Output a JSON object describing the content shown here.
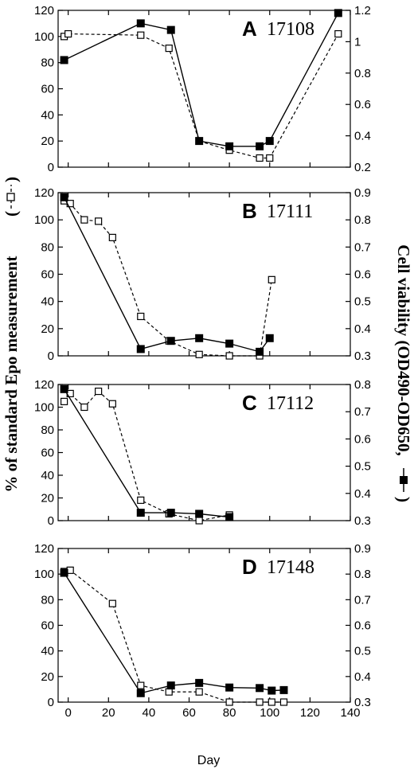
{
  "figure": {
    "left_axis_label": "% of standard Epo measurement",
    "right_axis_label": "Cell viability (OD490-OD650,",
    "x_axis_label": "Day"
  },
  "chart_data": [
    {
      "type": "line",
      "panel_letter": "A",
      "panel_id": "17108",
      "xlim": [
        -5,
        140
      ],
      "x_ticks": [
        0,
        20,
        40,
        60,
        80,
        100,
        120,
        140
      ],
      "ylim_left": [
        0,
        120
      ],
      "y_ticks_left": [
        "0",
        "20",
        "40",
        "60",
        "80",
        "100",
        "120"
      ],
      "ylim_right": [
        0.2,
        1.2
      ],
      "y_ticks_right": [
        "0.2",
        "0.4",
        "0.6",
        "0.8",
        "1",
        "1.2"
      ],
      "series": [
        {
          "axis": "left",
          "style": "dashed",
          "marker": "open-square",
          "points": [
            [
              -2,
              100
            ],
            [
              0,
              102
            ],
            [
              36,
              101
            ],
            [
              50,
              91
            ],
            [
              65,
              20
            ],
            [
              80,
              13
            ],
            [
              95,
              7
            ],
            [
              100,
              7
            ],
            [
              134,
              102
            ]
          ]
        },
        {
          "axis": "right",
          "style": "solid",
          "marker": "filled-square",
          "points": [
            [
              -2,
              0.883
            ],
            [
              36,
              1.117
            ],
            [
              51,
              1.075
            ],
            [
              65,
              0.367
            ],
            [
              80,
              0.333
            ],
            [
              95,
              0.333
            ],
            [
              100,
              0.367
            ],
            [
              134,
              1.183
            ]
          ]
        }
      ]
    },
    {
      "type": "line",
      "panel_letter": "B",
      "panel_id": "17111",
      "xlim": [
        -5,
        140
      ],
      "x_ticks": [
        0,
        20,
        40,
        60,
        80,
        100,
        120,
        140
      ],
      "ylim_left": [
        0,
        120
      ],
      "y_ticks_left": [
        "0",
        "20",
        "40",
        "60",
        "80",
        "100",
        "120"
      ],
      "ylim_right": [
        0.3,
        0.9
      ],
      "y_ticks_right": [
        "0.3",
        "0.4",
        "0.5",
        "0.6",
        "0.7",
        "0.8",
        "0.9"
      ],
      "series": [
        {
          "axis": "left",
          "style": "dashed",
          "marker": "open-square",
          "points": [
            [
              -2,
              114
            ],
            [
              1,
              112
            ],
            [
              8,
              100
            ],
            [
              15,
              99
            ],
            [
              22,
              87
            ],
            [
              36,
              29
            ],
            [
              50,
              11
            ],
            [
              65,
              1
            ],
            [
              80,
              0
            ],
            [
              95,
              0
            ],
            [
              101,
              56
            ]
          ]
        },
        {
          "axis": "right",
          "style": "solid",
          "marker": "filled-square",
          "points": [
            [
              -2,
              0.883
            ],
            [
              36,
              0.325
            ],
            [
              51,
              0.355
            ],
            [
              65,
              0.365
            ],
            [
              80,
              0.345
            ],
            [
              95,
              0.315
            ],
            [
              100,
              0.365
            ]
          ]
        }
      ]
    },
    {
      "type": "line",
      "panel_letter": "C",
      "panel_id": "17112",
      "xlim": [
        -5,
        140
      ],
      "x_ticks": [
        0,
        20,
        40,
        60,
        80,
        100,
        120,
        140
      ],
      "ylim_left": [
        0,
        120
      ],
      "y_ticks_left": [
        "0",
        "20",
        "40",
        "60",
        "80",
        "100",
        "120"
      ],
      "ylim_right": [
        0.3,
        0.8
      ],
      "y_ticks_right": [
        "0.3",
        "0.4",
        "0.5",
        "0.6",
        "0.7",
        "0.8"
      ],
      "series": [
        {
          "axis": "left",
          "style": "dashed",
          "marker": "open-square",
          "points": [
            [
              -2,
              105
            ],
            [
              1,
              112
            ],
            [
              8,
              100
            ],
            [
              15,
              114
            ],
            [
              22,
              103
            ],
            [
              36,
              18
            ],
            [
              50,
              6
            ],
            [
              65,
              0
            ],
            [
              80,
              5
            ]
          ]
        },
        {
          "axis": "right",
          "style": "solid",
          "marker": "filled-square",
          "points": [
            [
              -2,
              0.783
            ],
            [
              36,
              0.329
            ],
            [
              51,
              0.329
            ],
            [
              65,
              0.325
            ],
            [
              80,
              0.313
            ]
          ]
        }
      ]
    },
    {
      "type": "line",
      "panel_letter": "D",
      "panel_id": "17148",
      "xlim": [
        -5,
        140
      ],
      "x_ticks": [
        "0",
        "20",
        "40",
        "60",
        "80",
        "100",
        "120",
        "140"
      ],
      "ylim_left": [
        0,
        120
      ],
      "y_ticks_left": [
        "0",
        "20",
        "40",
        "60",
        "80",
        "100",
        "120"
      ],
      "ylim_right": [
        0.3,
        0.9
      ],
      "y_ticks_right": [
        "0.3",
        "0.4",
        "0.5",
        "0.6",
        "0.7",
        "0.8",
        "0.9"
      ],
      "series": [
        {
          "axis": "left",
          "style": "dashed",
          "marker": "open-square",
          "points": [
            [
              -2,
              102
            ],
            [
              1,
              103
            ],
            [
              22,
              77
            ],
            [
              36,
              13
            ],
            [
              50,
              8
            ],
            [
              65,
              8
            ],
            [
              80,
              0
            ],
            [
              95,
              0
            ],
            [
              101,
              0
            ],
            [
              107,
              0
            ]
          ]
        },
        {
          "axis": "right",
          "style": "solid",
          "marker": "filled-square",
          "points": [
            [
              -2,
              0.805
            ],
            [
              36,
              0.335
            ],
            [
              51,
              0.365
            ],
            [
              65,
              0.375
            ],
            [
              80,
              0.357
            ],
            [
              95,
              0.355
            ],
            [
              101,
              0.345
            ],
            [
              107,
              0.347
            ]
          ]
        }
      ]
    }
  ]
}
